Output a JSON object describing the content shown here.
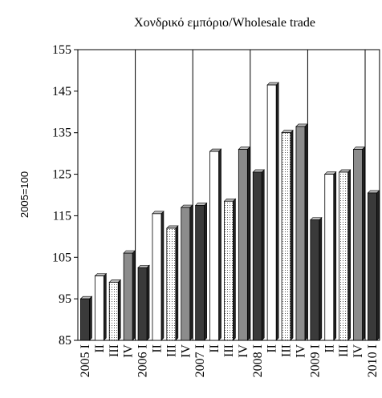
{
  "chart_data": {
    "type": "bar",
    "title": "Χονδρικό εμπόριο/Wholesale trade",
    "y_label": "2005=100",
    "categories": [
      "2005 I",
      "II",
      "III",
      "IV",
      "2006 I",
      "II",
      "III",
      "IV",
      "2007 I",
      "II",
      "III",
      "IV",
      "2008 I",
      "II",
      "III",
      "IV",
      "2009 I",
      "II",
      "III",
      "IV",
      "2010 I"
    ],
    "values": [
      95,
      100.5,
      99,
      106,
      102.5,
      115.5,
      112,
      117,
      117.5,
      130.5,
      118.5,
      131,
      125.5,
      146.5,
      135,
      136.5,
      114,
      125,
      125.5,
      131,
      120.5
    ],
    "colors": [
      "#3a3a3a",
      "#ffffff",
      "url(#dots)",
      "#8c8c8c",
      "#3a3a3a",
      "#ffffff",
      "url(#dots)",
      "#8c8c8c",
      "#3a3a3a",
      "#ffffff",
      "url(#dots)",
      "#8c8c8c",
      "#3a3a3a",
      "#ffffff",
      "url(#dots)",
      "#8c8c8c",
      "#3a3a3a",
      "#ffffff",
      "url(#dots)",
      "#8c8c8c",
      "#3a3a3a"
    ],
    "ylim": [
      85,
      155
    ],
    "yticks": [
      85,
      95,
      105,
      115,
      125,
      135,
      145,
      155
    ]
  }
}
